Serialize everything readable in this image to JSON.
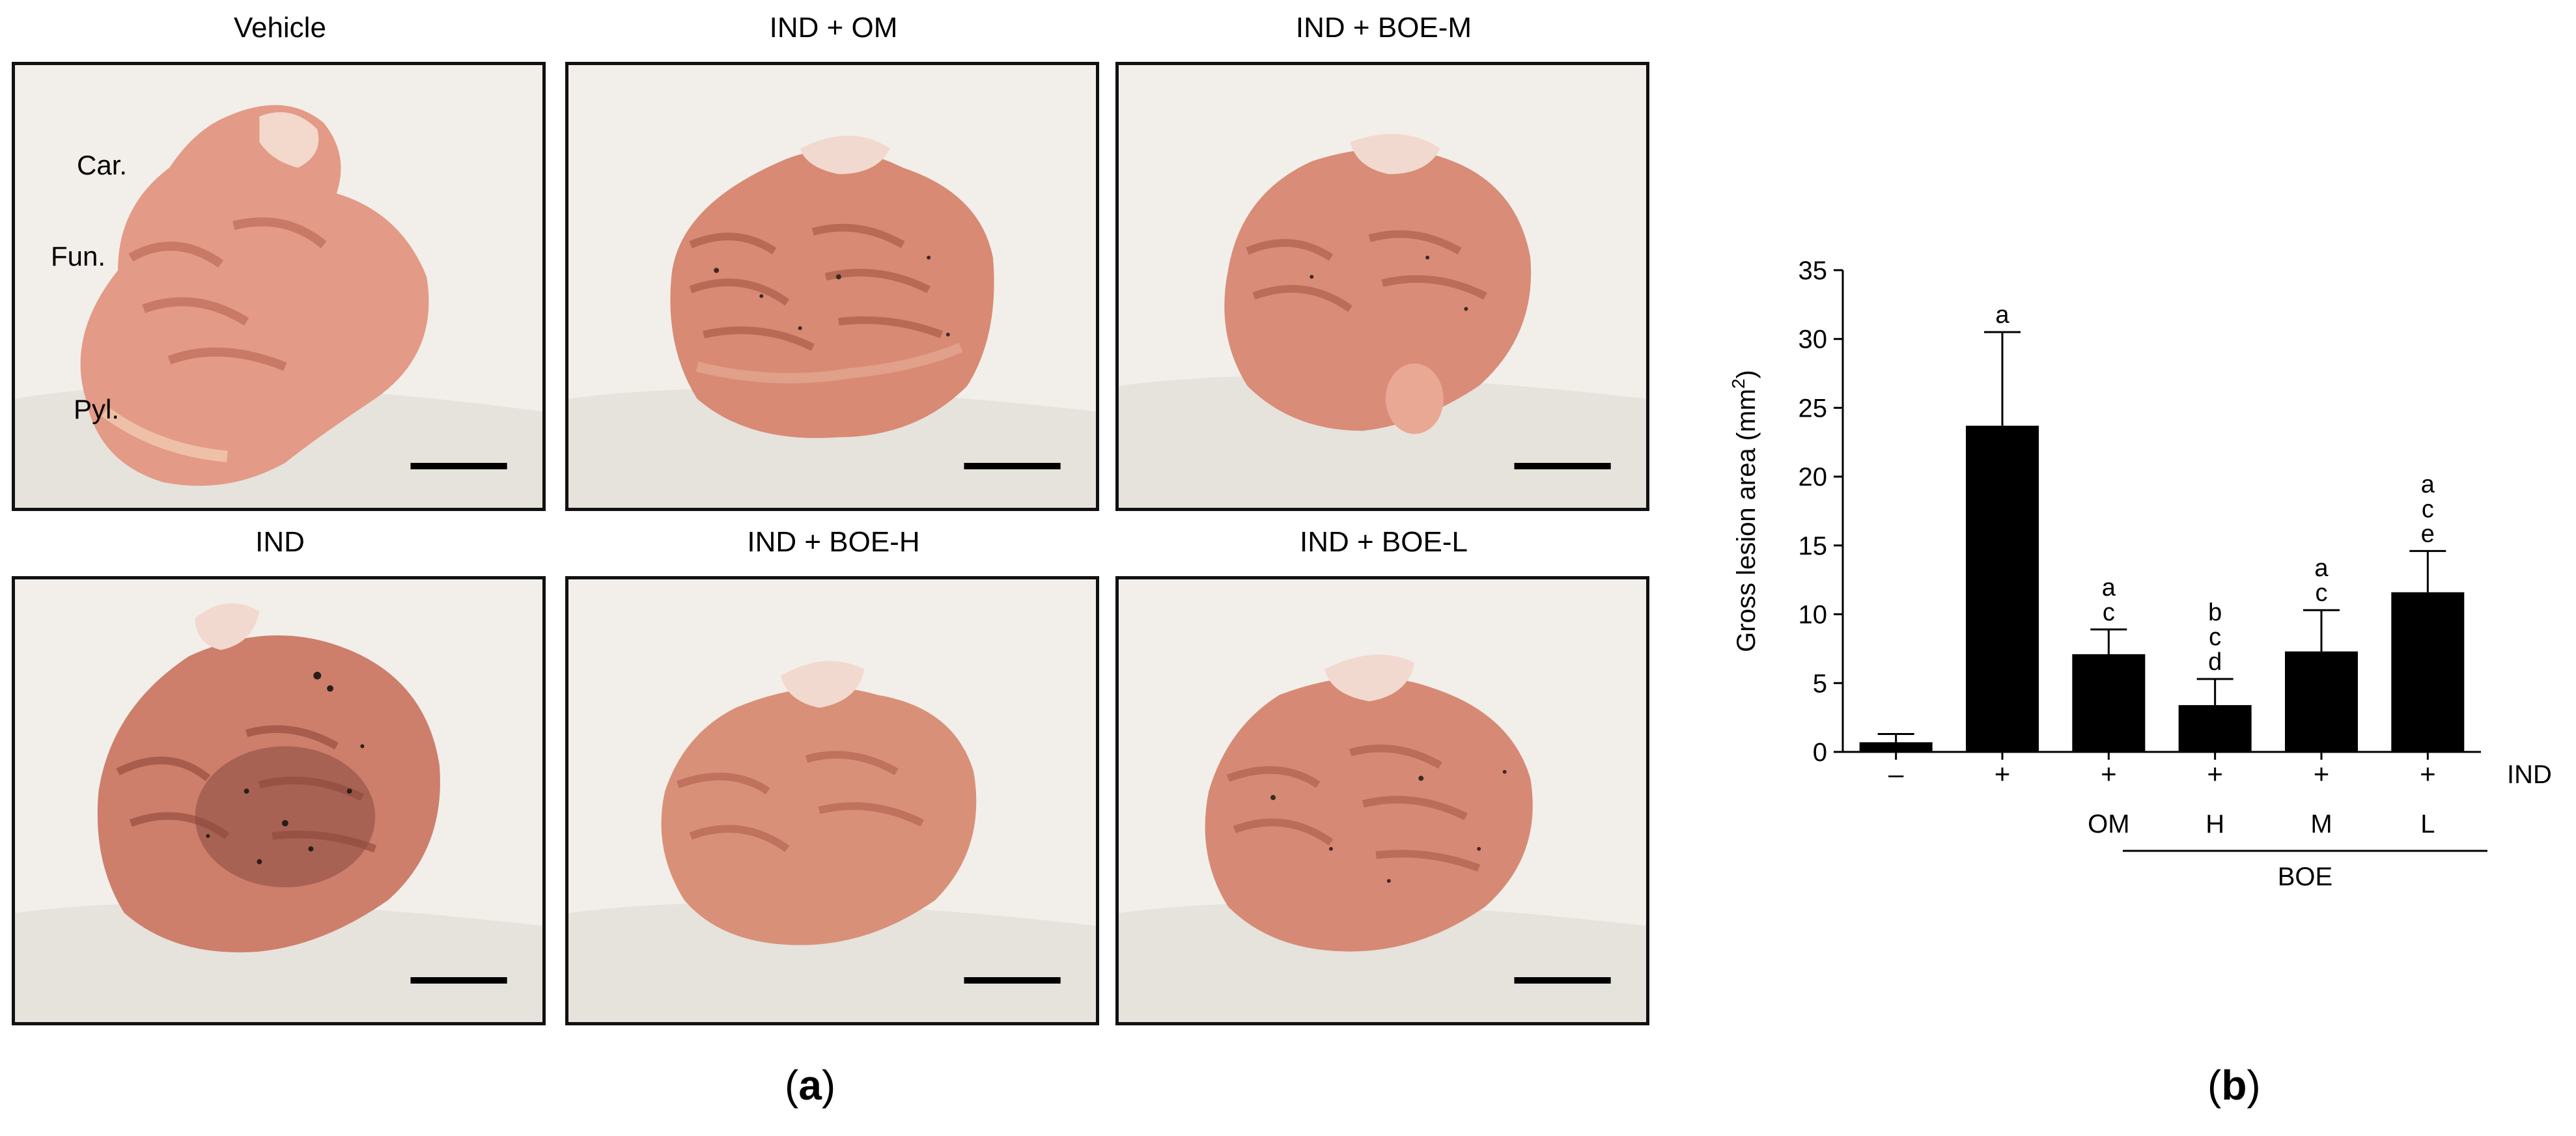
{
  "panel_a": {
    "label_open": "(",
    "label_letter": "a",
    "label_close": ")",
    "photos": [
      {
        "title": "Vehicle",
        "annotations": {
          "car": "Car.",
          "fun": "Fun.",
          "pyl": "Pyl."
        }
      },
      {
        "title": "IND + OM"
      },
      {
        "title": "IND + BOE-M"
      },
      {
        "title": "IND"
      },
      {
        "title": "IND + BOE-H"
      },
      {
        "title": "IND + BOE-L"
      }
    ]
  },
  "panel_b": {
    "label_open": "(",
    "label_letter": "b",
    "label_close": ")"
  },
  "chart_data": {
    "type": "bar",
    "ylabel": "Gross lesion area (mm",
    "ylabel_sup": "2",
    "ylabel_close": ")",
    "ylim": [
      0,
      35
    ],
    "yticks": [
      0,
      5,
      10,
      15,
      20,
      25,
      30,
      35
    ],
    "ind_row": [
      "–",
      "+",
      "+",
      "+",
      "+",
      "+"
    ],
    "ind_label": "IND",
    "treatment_row": [
      "",
      "",
      "OM",
      "H",
      "M",
      "L"
    ],
    "group_label": "BOE",
    "values": [
      0.7,
      23.7,
      7.1,
      3.4,
      7.3,
      11.6
    ],
    "errors": [
      0.6,
      6.8,
      1.8,
      1.9,
      3.0,
      3.0
    ],
    "significance": [
      [],
      [
        "a"
      ],
      [
        "a",
        "c"
      ],
      [
        "b",
        "c",
        "d"
      ],
      [
        "a",
        "c"
      ],
      [
        "a",
        "c",
        "e"
      ]
    ],
    "bar_color": "#000000"
  }
}
